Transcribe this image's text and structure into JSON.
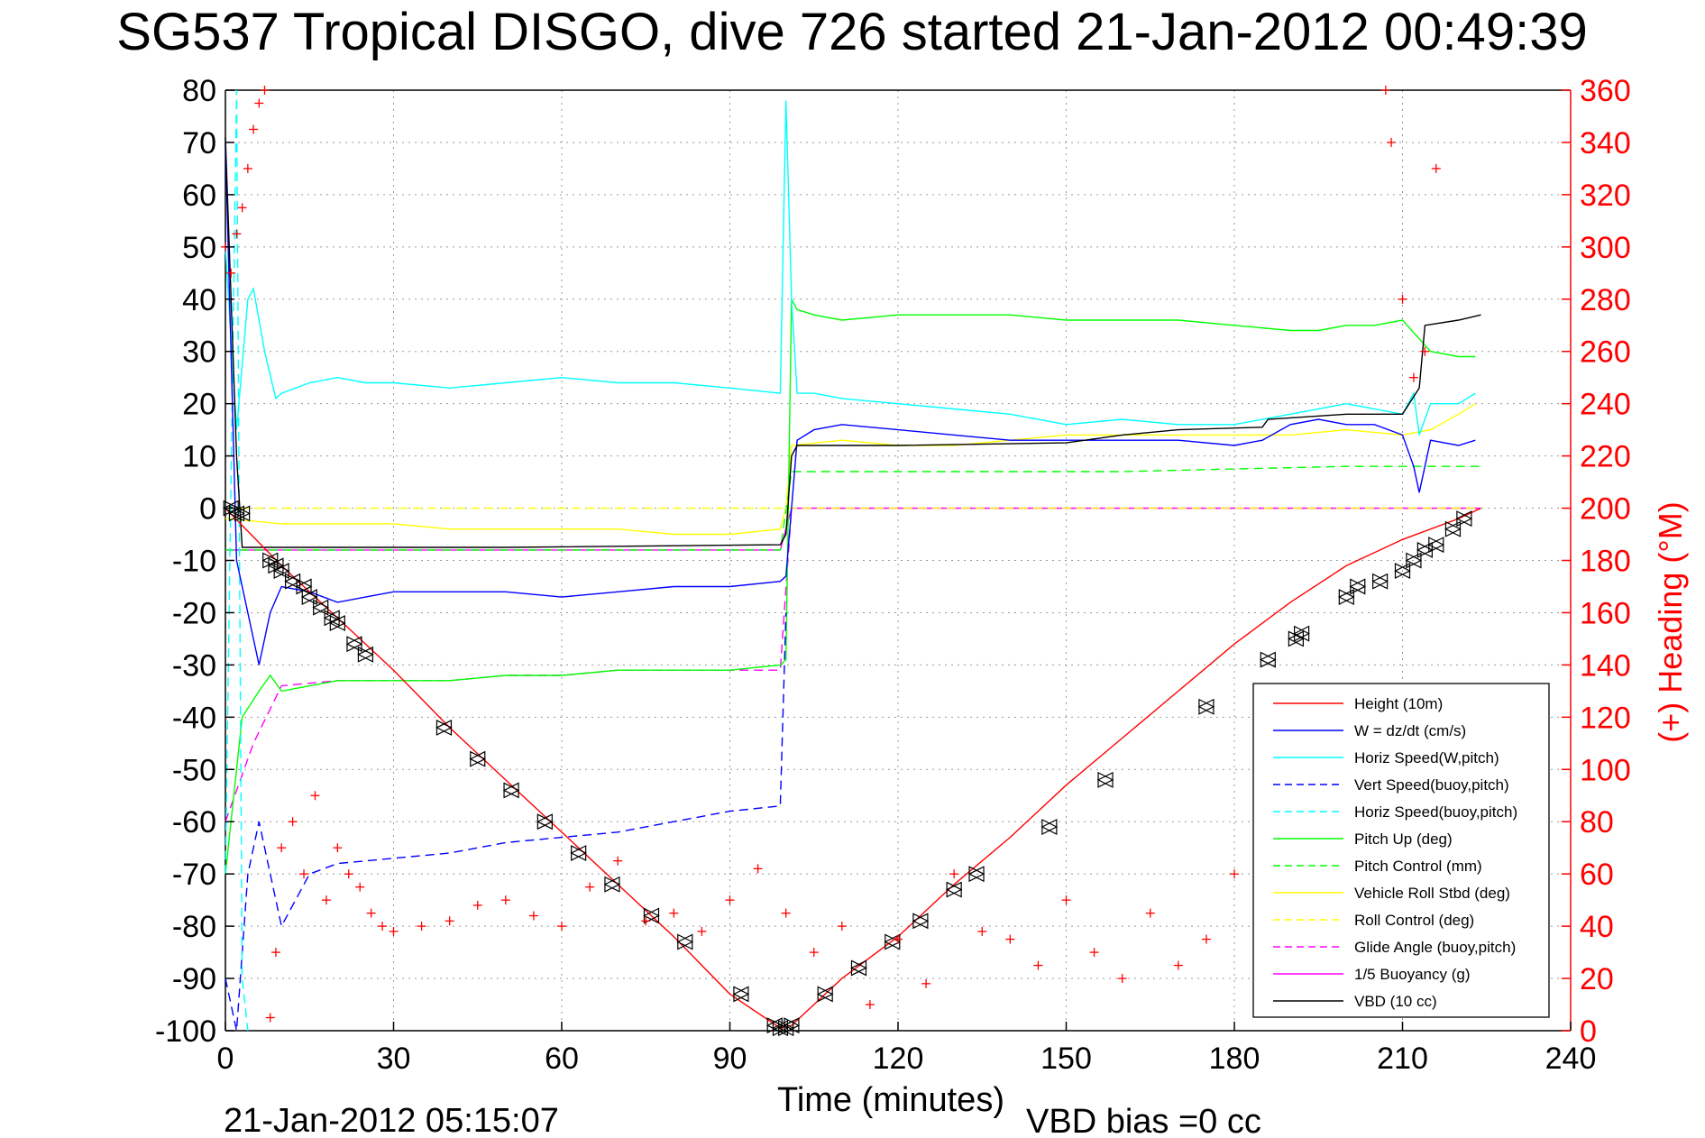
{
  "chart_data": {
    "type": "line",
    "title": "SG537 Tropical DISGO, dive 726 started 21-Jan-2012 00:49:39",
    "xlabel": "Time (minutes)",
    "ylabel_right": "(+) Heading (°M)",
    "xlim": [
      0,
      240
    ],
    "ylim": [
      -100,
      80
    ],
    "ylim_right": [
      0,
      360
    ],
    "x_ticks": [
      0,
      30,
      60,
      90,
      120,
      150,
      180,
      210,
      240
    ],
    "y_ticks": [
      80,
      70,
      60,
      50,
      40,
      30,
      20,
      10,
      0,
      -10,
      -20,
      -30,
      -40,
      -50,
      -60,
      -70,
      -80,
      -90,
      -100
    ],
    "y_ticks_right": [
      360,
      340,
      320,
      300,
      280,
      260,
      240,
      220,
      200,
      180,
      160,
      140,
      120,
      100,
      80,
      60,
      40,
      20,
      0
    ],
    "grid": true,
    "legend_position": "bottom-right",
    "footer_left": "21-Jan-2012 05:15:07",
    "footer_right": "VBD bias =0 cc",
    "series": [
      {
        "name": "Height (10m)",
        "color": "#ff0000",
        "style": "solid",
        "x": [
          0,
          10,
          20,
          30,
          40,
          50,
          60,
          70,
          80,
          90,
          99,
          101,
          110,
          120,
          130,
          140,
          150,
          160,
          170,
          180,
          190,
          200,
          210,
          220,
          224
        ],
        "y": [
          0,
          -11,
          -21,
          -31,
          -42,
          -52,
          -62,
          -72,
          -82,
          -93,
          -99.5,
          -99,
          -90,
          -82,
          -72,
          -63,
          -53,
          -44,
          -35,
          -26,
          -18,
          -11,
          -6,
          -2,
          0
        ]
      },
      {
        "name": "W = dz/dt (cm/s)",
        "color": "#0000ff",
        "style": "solid",
        "x": [
          0,
          2,
          6,
          8,
          10,
          15,
          20,
          25,
          30,
          40,
          50,
          60,
          70,
          80,
          90,
          99,
          100,
          102,
          105,
          110,
          120,
          130,
          140,
          150,
          160,
          170,
          180,
          185,
          190,
          195,
          200,
          205,
          210,
          212,
          213,
          215,
          220,
          223
        ],
        "y": [
          70,
          -10,
          -30,
          -20,
          -15,
          -16,
          -18,
          -17,
          -16,
          -16,
          -16,
          -17,
          -16,
          -15,
          -15,
          -14,
          -13,
          13,
          15,
          16,
          15,
          14,
          13,
          13,
          13,
          13,
          12,
          13,
          16,
          17,
          16,
          16,
          14,
          8,
          3,
          13,
          12,
          13
        ]
      },
      {
        "name": "Horiz Speed(W,pitch)",
        "color": "#00ffff",
        "style": "solid",
        "x": [
          0,
          2,
          4,
          5,
          7,
          9,
          10,
          15,
          20,
          25,
          30,
          40,
          50,
          60,
          70,
          80,
          90,
          99,
          100,
          101,
          102,
          105,
          110,
          120,
          130,
          140,
          150,
          160,
          170,
          180,
          190,
          200,
          210,
          212,
          213,
          215,
          220,
          223
        ],
        "y": [
          50,
          15,
          40,
          42,
          30,
          21,
          22,
          24,
          25,
          24,
          24,
          23,
          24,
          25,
          24,
          24,
          23,
          22,
          78,
          40,
          22,
          22,
          21,
          20,
          19,
          18,
          16,
          17,
          16,
          16,
          18,
          20,
          18,
          22,
          14,
          20,
          20,
          22
        ]
      },
      {
        "name": "Vert Speed(buoy,pitch)",
        "color": "#0000ff",
        "style": "dashed",
        "x": [
          0,
          2,
          4,
          6,
          8,
          10,
          15,
          20,
          30,
          40,
          50,
          60,
          70,
          80,
          90,
          99,
          100
        ],
        "y": [
          -90,
          -100,
          -70,
          -60,
          -70,
          -80,
          -70,
          -68,
          -67,
          -66,
          -64,
          -63,
          -62,
          -60,
          -58,
          -57,
          -20
        ]
      },
      {
        "name": "Horiz Speed(buoy,pitch)",
        "color": "#00ffff",
        "style": "dashed",
        "x": [
          0,
          2,
          3,
          4
        ],
        "y": [
          -70,
          80,
          -90,
          -100
        ]
      },
      {
        "name": "Pitch Up (deg)",
        "color": "#00ff00",
        "style": "solid",
        "x": [
          0,
          3,
          6,
          8,
          10,
          15,
          20,
          30,
          40,
          50,
          60,
          70,
          80,
          90,
          99,
          100,
          101,
          102,
          105,
          110,
          120,
          130,
          140,
          150,
          160,
          170,
          180,
          190,
          195,
          200,
          205,
          210,
          215,
          220,
          223
        ],
        "y": [
          -70,
          -40,
          -35,
          -32,
          -35,
          -34,
          -33,
          -33,
          -33,
          -32,
          -32,
          -31,
          -31,
          -31,
          -30,
          -29,
          40,
          38,
          37,
          36,
          37,
          37,
          37,
          36,
          36,
          36,
          35,
          34,
          34,
          35,
          35,
          36,
          30,
          29,
          29
        ]
      },
      {
        "name": "Pitch Control (mm)",
        "color": "#00ff00",
        "style": "dashed",
        "x": [
          0,
          8,
          50,
          99,
          101,
          120,
          160,
          200,
          224
        ],
        "y": [
          -8,
          -8,
          -8,
          -8,
          7,
          7,
          7,
          8,
          8
        ]
      },
      {
        "name": "Vehicle Roll Stbd (deg)",
        "color": "#ffff00",
        "style": "solid",
        "x": [
          0,
          10,
          20,
          30,
          40,
          50,
          60,
          70,
          80,
          90,
          99,
          100,
          101,
          110,
          120,
          130,
          140,
          150,
          160,
          170,
          180,
          190,
          200,
          210,
          215,
          220,
          223
        ],
        "y": [
          -2,
          -3,
          -3,
          -3,
          -4,
          -4,
          -4,
          -4,
          -5,
          -5,
          -4,
          0,
          12,
          13,
          12,
          12,
          13,
          14,
          14,
          14,
          14,
          14,
          15,
          14,
          15,
          18,
          20
        ]
      },
      {
        "name": "Roll Control (deg)",
        "color": "#ffff00",
        "style": "dashed",
        "x": [
          0,
          50,
          99,
          101,
          150,
          200,
          224
        ],
        "y": [
          0,
          0,
          0,
          0,
          0,
          0,
          0
        ]
      },
      {
        "name": "Glide Angle (buoy,pitch)",
        "color": "#ff00ff",
        "style": "dashed",
        "x": [
          0,
          5,
          10,
          20,
          30,
          40,
          50,
          60,
          70,
          80,
          90,
          99,
          101,
          150,
          200,
          224
        ],
        "y": [
          -60,
          -45,
          -34,
          -33,
          -33,
          -33,
          -32,
          -32,
          -31,
          -31,
          -31,
          -31,
          0,
          0,
          0,
          0
        ]
      },
      {
        "name": "1/5 Buoyancy (g)",
        "color": "#ff00ff",
        "style": "solid",
        "x": [
          0,
          50,
          99,
          101,
          150,
          200,
          224
        ],
        "y": [
          -8,
          -8,
          -8,
          0,
          0,
          0,
          0
        ]
      },
      {
        "name": "VBD (10 cc)",
        "color": "#000000",
        "style": "solid",
        "x": [
          0,
          2,
          3,
          50,
          99,
          100,
          101,
          102,
          120,
          150,
          160,
          170,
          185,
          186,
          200,
          210,
          213,
          214,
          220,
          224
        ],
        "y": [
          71,
          10,
          -7.5,
          -7.5,
          -7,
          -5,
          10,
          12,
          12,
          12.5,
          14,
          15,
          15.5,
          17,
          18,
          18,
          23,
          35,
          36,
          37
        ]
      },
      {
        "name": "Heading",
        "color": "#ff0000",
        "style": "markers",
        "axis": "right",
        "x": [
          0,
          1,
          2,
          3,
          4,
          5,
          6,
          7,
          8,
          9,
          10,
          12,
          14,
          16,
          18,
          20,
          22,
          24,
          26,
          28,
          30,
          35,
          40,
          45,
          50,
          55,
          60,
          65,
          70,
          75,
          80,
          85,
          90,
          95,
          100,
          105,
          110,
          115,
          120,
          125,
          130,
          135,
          140,
          145,
          150,
          155,
          160,
          165,
          170,
          175,
          180,
          185,
          190,
          195,
          200,
          205,
          207,
          208,
          210,
          212,
          214,
          216,
          220
        ],
        "y": [
          300,
          290,
          305,
          315,
          330,
          345,
          355,
          360,
          5,
          30,
          70,
          80,
          60,
          90,
          50,
          70,
          60,
          55,
          45,
          40,
          38,
          40,
          42,
          48,
          50,
          44,
          40,
          55,
          65,
          42,
          45,
          38,
          50,
          62,
          45,
          30,
          40,
          10,
          35,
          18,
          60,
          38,
          35,
          25,
          50,
          30,
          20,
          45,
          25,
          35,
          60,
          70,
          40,
          10,
          30,
          20,
          360,
          340,
          280,
          250,
          260,
          330,
          40
        ]
      }
    ],
    "height_markers": {
      "x": [
        1,
        2,
        3,
        8,
        9,
        10,
        12,
        14,
        15,
        17,
        19,
        20,
        23,
        25,
        39,
        45,
        51,
        57,
        63,
        69,
        76,
        82,
        92,
        98,
        99,
        100,
        101,
        107,
        113,
        119,
        124,
        130,
        134,
        147,
        157,
        175,
        186,
        191,
        192,
        200,
        202,
        206,
        210,
        212,
        214,
        216,
        219,
        221
      ],
      "y": [
        0,
        -1,
        -1,
        -10,
        -11,
        -12,
        -14,
        -15,
        -17,
        -19,
        -21,
        -22,
        -26,
        -28,
        -42,
        -48,
        -54,
        -60,
        -66,
        -72,
        -78,
        -83,
        -93,
        -99,
        -99.5,
        -99.5,
        -99,
        -93,
        -88,
        -83,
        -79,
        -73,
        -70,
        -61,
        -52,
        -38,
        -29,
        -25,
        -24,
        -17,
        -15,
        -14,
        -12,
        -10,
        -8,
        -7,
        -4,
        -2
      ]
    }
  }
}
